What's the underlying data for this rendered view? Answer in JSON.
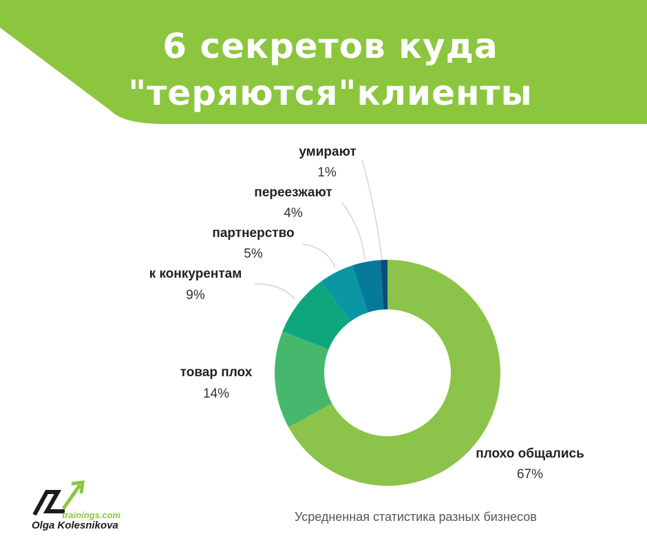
{
  "header": {
    "title_line1": "6 секретов куда",
    "title_line2": "\"теряются\"клиенты",
    "banner_color": "#8cc63f"
  },
  "chart_data": {
    "type": "pie",
    "style": "donut",
    "slices": [
      {
        "label": "плохо общались",
        "value": 67,
        "value_label": "67%",
        "color": "#8cc34a"
      },
      {
        "label": "товар плох",
        "value": 14,
        "value_label": "14%",
        "color": "#45b86e"
      },
      {
        "label": "к конкурентам",
        "value": 9,
        "value_label": "9%",
        "color": "#0ea77d"
      },
      {
        "label": "партнерство",
        "value": 5,
        "value_label": "5%",
        "color": "#0a97a3"
      },
      {
        "label": "переезжают",
        "value": 4,
        "value_label": "4%",
        "color": "#057a9a"
      },
      {
        "label": "умирают",
        "value": 1,
        "value_label": "1%",
        "color": "#0b4e7a"
      }
    ]
  },
  "footer": {
    "caption": "Усредненная статистика разных бизнесов",
    "logo_domain": "trainings.com",
    "logo_name": "Olga Kolesnikova"
  }
}
